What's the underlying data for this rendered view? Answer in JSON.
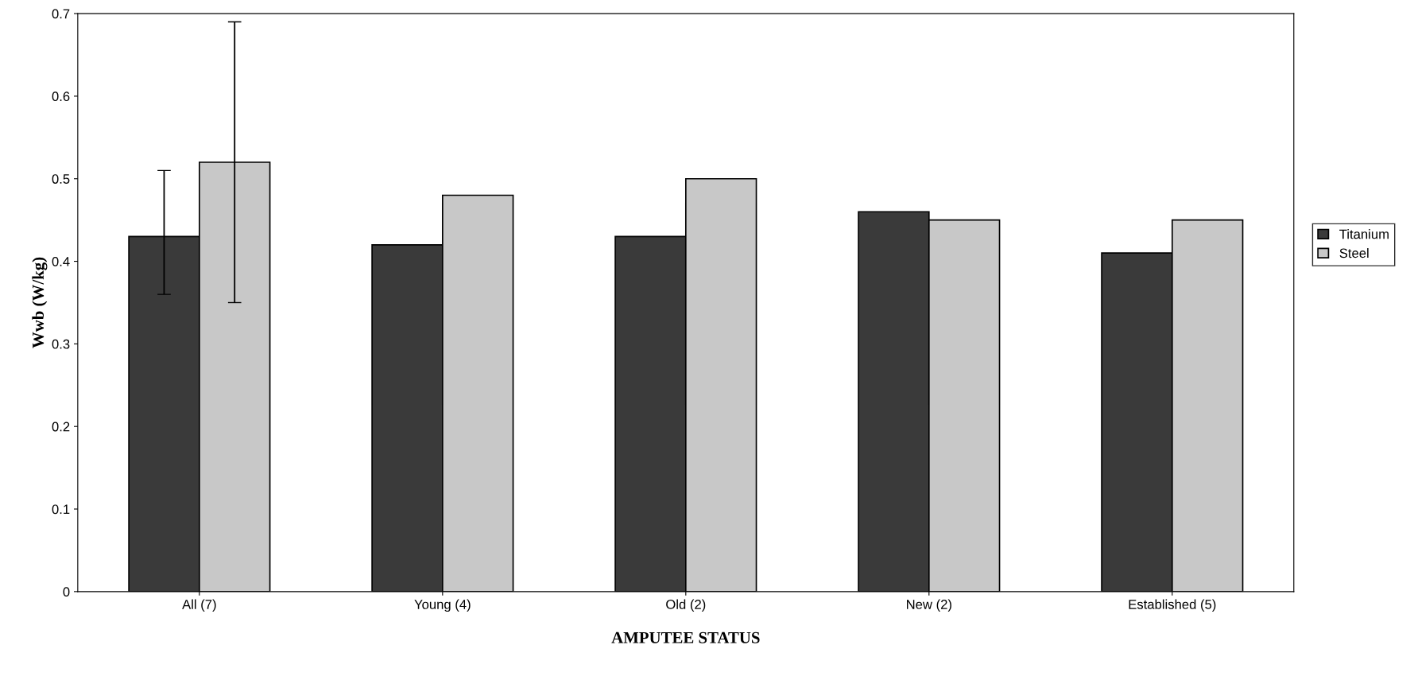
{
  "chart_data": {
    "type": "bar",
    "xlabel": "AMPUTEE STATUS",
    "ylabel": "Wwb (W/kg)",
    "categories": [
      "All (7)",
      "Young (4)",
      "Old (2)",
      "New (2)",
      "Established (5)"
    ],
    "series": [
      {
        "name": "Titanium",
        "color": "#3a3a3a",
        "values": [
          0.43,
          0.42,
          0.43,
          0.46,
          0.41
        ],
        "errors": [
          [
            0.36,
            0.51
          ],
          null,
          null,
          null,
          null
        ]
      },
      {
        "name": "Steel",
        "color": "#c8c8c8",
        "values": [
          0.52,
          0.48,
          0.5,
          0.45,
          0.45
        ],
        "errors": [
          [
            0.35,
            0.69
          ],
          null,
          null,
          null,
          null
        ]
      }
    ],
    "ylim": [
      0,
      0.7
    ],
    "yticks": [
      0,
      0.1,
      0.2,
      0.3,
      0.4,
      0.5,
      0.6,
      0.7
    ],
    "grid": false,
    "legend": "right"
  }
}
